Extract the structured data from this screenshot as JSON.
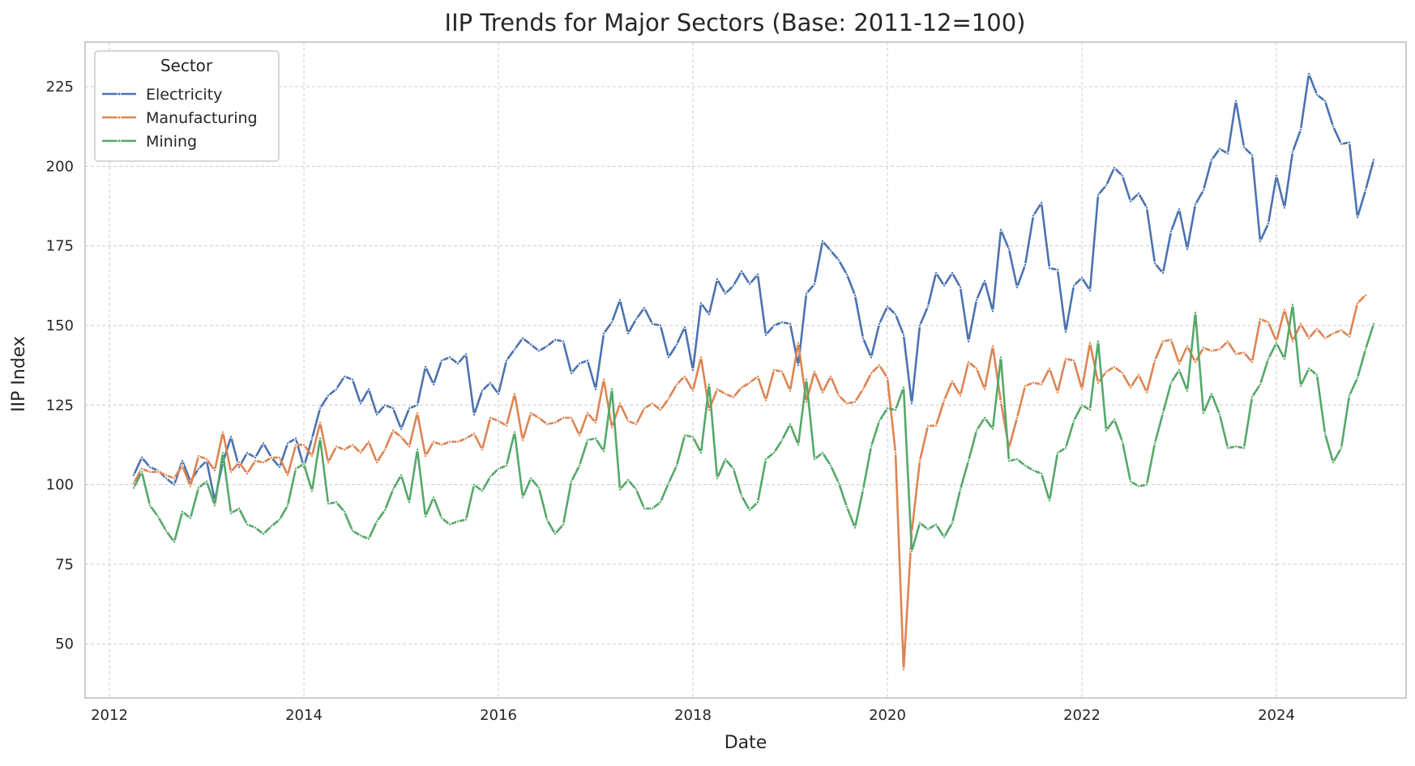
{
  "chart_data": {
    "type": "line",
    "title": "IIP Trends for Major Sectors (Base: 2011-12=100)",
    "xlabel": "Date",
    "ylabel": "IIP Index",
    "x_start": "2012-04",
    "x_interval": "monthly",
    "xlim": [
      "2011-10",
      "2025-05"
    ],
    "ylim": [
      33,
      239
    ],
    "x_ticks": [
      "2012",
      "2014",
      "2016",
      "2018",
      "2020",
      "2022",
      "2024"
    ],
    "y_ticks": [
      50,
      75,
      100,
      125,
      150,
      175,
      200,
      225
    ],
    "grid": true,
    "legend": {
      "title": "Sector",
      "placement": "top-left"
    },
    "series": [
      {
        "name": "Electricity",
        "color": "#4c72b0",
        "values": [
          103,
          108.5,
          105.5,
          104.5,
          102,
          100,
          107.5,
          101,
          105,
          107.5,
          95,
          107,
          115,
          105.5,
          110,
          108.5,
          113,
          108.5,
          105.5,
          113,
          114.5,
          105.5,
          114.5,
          124,
          128,
          130,
          134,
          133,
          125.5,
          130,
          122,
          125,
          124,
          117.5,
          124,
          125,
          137,
          131.5,
          139,
          140,
          138,
          141,
          122,
          129.5,
          132,
          128.5,
          139,
          142.5,
          146,
          144,
          142,
          143.5,
          145.5,
          145,
          135,
          138,
          139,
          130,
          147.5,
          151,
          158,
          147.5,
          152,
          155.5,
          150.5,
          150,
          140,
          144,
          149.5,
          136,
          157,
          153.5,
          164.5,
          160,
          162.5,
          167,
          163,
          166,
          147,
          150,
          151,
          150.5,
          137.5,
          160,
          163,
          176.5,
          173.5,
          170.5,
          166,
          159.5,
          146,
          140,
          150.5,
          156,
          153.5,
          147,
          125.5,
          150,
          156,
          166.5,
          162.5,
          166.5,
          162,
          145,
          158,
          164,
          154.5,
          180,
          174,
          162,
          169,
          184.5,
          188.5,
          168,
          167.5,
          148,
          162.5,
          165,
          161,
          191,
          194,
          199.5,
          197,
          189,
          191.5,
          187,
          169.5,
          166.5,
          179.5,
          186.5,
          174,
          188,
          192.5,
          202,
          205.5,
          204,
          220.5,
          206,
          203.5,
          176.5,
          182,
          197,
          187,
          204.5,
          211.5,
          229,
          222.5,
          220.5,
          212.5,
          207,
          207.5,
          184,
          192.5,
          202
        ]
      },
      {
        "name": "Manufacturing",
        "color": "#dd8452",
        "values": [
          100.5,
          105,
          104,
          104,
          103,
          102,
          106,
          99.5,
          109,
          108,
          104.5,
          116.5,
          104,
          107,
          103.5,
          107.5,
          107,
          108.5,
          108.5,
          103,
          112.5,
          112.5,
          109,
          119.5,
          107,
          112,
          111,
          112.5,
          110,
          113.5,
          107,
          111,
          117,
          115,
          112,
          122.5,
          109,
          113.5,
          112.5,
          113.5,
          113.5,
          114.5,
          116,
          111,
          121,
          120,
          118.5,
          128.5,
          114,
          122.5,
          121,
          119,
          119.5,
          121,
          121,
          115.5,
          122.5,
          119.5,
          133,
          118,
          125.5,
          120,
          119,
          124,
          125.5,
          123.5,
          127,
          131.5,
          134,
          129.5,
          140,
          123.5,
          130,
          128.5,
          127.5,
          130.5,
          132,
          134,
          126.5,
          136,
          135.5,
          129.5,
          144.5,
          126,
          135.5,
          129,
          134,
          128,
          125.5,
          126,
          130,
          135,
          137.5,
          133.5,
          110,
          42,
          85,
          107.5,
          118.5,
          118.5,
          126.5,
          132.5,
          128,
          138.5,
          136.5,
          130,
          143.5,
          126,
          111.5,
          121,
          131,
          132,
          131.5,
          136.5,
          129,
          139.5,
          139,
          130,
          144.5,
          132,
          135.5,
          137,
          135,
          130.5,
          134.5,
          129,
          139,
          145,
          145.5,
          138,
          143.5,
          138.5,
          143,
          142,
          142.5,
          145,
          141,
          141.5,
          138.5,
          152,
          151,
          145,
          155,
          145,
          150.5,
          146,
          149,
          146,
          147.5,
          148.5,
          146.5,
          157,
          159.5
        ]
      },
      {
        "name": "Mining",
        "color": "#55a868",
        "values": [
          99,
          104,
          93.5,
          90,
          85.5,
          82,
          91.5,
          89.5,
          99,
          101,
          93.5,
          110,
          91,
          92.5,
          87.5,
          86.5,
          84.5,
          87,
          89,
          93.5,
          105,
          106.5,
          98,
          114.5,
          94,
          94.5,
          91.5,
          85.5,
          84,
          83,
          88.5,
          92,
          98.5,
          103,
          94.5,
          111,
          90,
          96,
          89.5,
          87.5,
          88.5,
          89,
          100,
          98,
          102.5,
          105,
          106,
          116.5,
          96,
          102,
          99,
          89,
          84.5,
          87.5,
          101,
          106,
          114,
          114.5,
          110.5,
          130,
          98.5,
          101.5,
          98.5,
          92.5,
          92.5,
          94.5,
          100.5,
          106,
          115.5,
          115,
          110,
          131.5,
          102,
          108,
          105,
          96.5,
          92,
          94.5,
          108,
          110,
          114,
          119,
          112.5,
          133,
          108,
          110,
          106,
          100.5,
          93,
          86.5,
          98.5,
          112,
          120,
          124,
          123.5,
          130.5,
          79,
          88,
          86,
          87.5,
          83.5,
          88,
          98.5,
          107.5,
          117,
          121,
          117.5,
          140,
          107.5,
          108,
          106,
          104.5,
          103.5,
          95,
          110,
          111.5,
          120,
          125,
          123.5,
          145,
          117,
          120.5,
          113.5,
          101,
          99.5,
          100,
          113,
          122.5,
          132,
          136,
          129.5,
          154,
          122.5,
          128.5,
          122,
          111.5,
          112,
          111.5,
          127.5,
          131.5,
          139.5,
          144.5,
          139.5,
          156.5,
          131,
          136.5,
          134.5,
          116,
          107,
          111.5,
          128,
          133.5,
          142.5,
          150.5
        ]
      }
    ]
  }
}
